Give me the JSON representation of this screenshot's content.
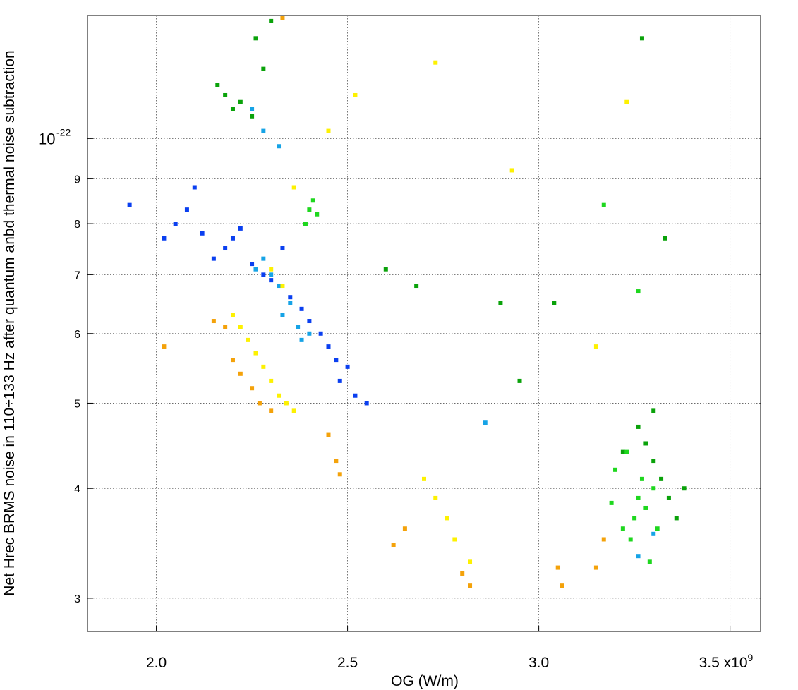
{
  "chart_data": {
    "type": "scatter",
    "title": "",
    "xlabel": "OG (W/m)",
    "ylabel": "Net Hrec BRMS noise in 110÷133 Hz after quantum anbd thermal noise subtraction",
    "x_scale": "linear",
    "y_scale": "log",
    "xlim": [
      1820000000.0,
      3580000000.0
    ],
    "ylim": [
      2.75e-23,
      1.38e-22
    ],
    "grid": true,
    "grid_style": "dotted",
    "legend": "none",
    "x_ticks": [
      {
        "value": 2000000000.0,
        "label": "2.0"
      },
      {
        "value": 2500000000.0,
        "label": "2.5"
      },
      {
        "value": 3000000000.0,
        "label": "3.0"
      },
      {
        "value": 3500000000.0,
        "label": "3.5 x10",
        "exponent": "9"
      }
    ],
    "y_ticks": [
      {
        "value": 3e-23,
        "label": "3"
      },
      {
        "value": 4e-23,
        "label": "4"
      },
      {
        "value": 5e-23,
        "label": "5"
      },
      {
        "value": 6e-23,
        "label": "6"
      },
      {
        "value": 7e-23,
        "label": "7"
      },
      {
        "value": 8e-23,
        "label": "8"
      },
      {
        "value": 9e-23,
        "label": "9"
      },
      {
        "value": 1e-22,
        "label": "10",
        "exponent": "-22"
      }
    ],
    "series": [
      {
        "color": "#0a3ff0",
        "points": [
          [
            2200000000.0,
            7.7e-23
          ],
          [
            2180000000.0,
            7.5e-23
          ],
          [
            2220000000.0,
            7.9e-23
          ],
          [
            2150000000.0,
            7.3e-23
          ],
          [
            2250000000.0,
            7.2e-23
          ],
          [
            2280000000.0,
            7e-23
          ],
          [
            2120000000.0,
            7.8e-23
          ],
          [
            2300000000.0,
            6.9e-23
          ],
          [
            2350000000.0,
            6.6e-23
          ],
          [
            2400000000.0,
            6.2e-23
          ],
          [
            2430000000.0,
            6e-23
          ],
          [
            2450000000.0,
            5.8e-23
          ],
          [
            2470000000.0,
            5.6e-23
          ],
          [
            2500000000.0,
            5.5e-23
          ],
          [
            2480000000.0,
            5.3e-23
          ],
          [
            2520000000.0,
            5.1e-23
          ],
          [
            2050000000.0,
            8e-23
          ],
          [
            2020000000.0,
            7.7e-23
          ],
          [
            2080000000.0,
            8.3e-23
          ],
          [
            1930000000.0,
            8.4e-23
          ],
          [
            2100000000.0,
            8.8e-23
          ],
          [
            2550000000.0,
            5e-23
          ],
          [
            2330000000.0,
            7.5e-23
          ],
          [
            2380000000.0,
            6.4e-23
          ]
        ]
      },
      {
        "color": "#16a3e6",
        "points": [
          [
            2280000000.0,
            7.3e-23
          ],
          [
            2300000000.0,
            7e-23
          ],
          [
            2320000000.0,
            6.8e-23
          ],
          [
            2350000000.0,
            6.5e-23
          ],
          [
            2330000000.0,
            6.3e-23
          ],
          [
            2260000000.0,
            7.1e-23
          ],
          [
            2370000000.0,
            6.1e-23
          ],
          [
            2380000000.0,
            5.9e-23
          ],
          [
            2400000000.0,
            6e-23
          ],
          [
            2250000000.0,
            1.08e-22
          ],
          [
            2280000000.0,
            1.02e-22
          ],
          [
            2320000000.0,
            9.8e-23
          ],
          [
            2860000000.0,
            4.75e-23
          ],
          [
            3260000000.0,
            3.35e-23
          ],
          [
            3300000000.0,
            3.55e-23
          ]
        ]
      },
      {
        "color": "#fdf101",
        "points": [
          [
            2280000000.0,
            5.5e-23
          ],
          [
            2300000000.0,
            5.3e-23
          ],
          [
            2260000000.0,
            5.7e-23
          ],
          [
            2320000000.0,
            5.1e-23
          ],
          [
            2240000000.0,
            5.9e-23
          ],
          [
            2220000000.0,
            6.1e-23
          ],
          [
            2340000000.0,
            5e-23
          ],
          [
            2200000000.0,
            6.3e-23
          ],
          [
            2360000000.0,
            4.9e-23
          ],
          [
            2330000000.0,
            6.8e-23
          ],
          [
            2300000000.0,
            7.1e-23
          ],
          [
            2700000000.0,
            4.1e-23
          ],
          [
            2730000000.0,
            3.9e-23
          ],
          [
            2760000000.0,
            3.7e-23
          ],
          [
            2780000000.0,
            3.5e-23
          ],
          [
            2820000000.0,
            3.3e-23
          ],
          [
            2360000000.0,
            8.8e-23
          ],
          [
            2450000000.0,
            1.02e-22
          ],
          [
            2520000000.0,
            1.12e-22
          ],
          [
            2730000000.0,
            1.22e-22
          ],
          [
            2930000000.0,
            9.2e-23
          ],
          [
            3230000000.0,
            1.1e-22
          ],
          [
            3150000000.0,
            5.8e-23
          ]
        ]
      },
      {
        "color": "#f4a20a",
        "points": [
          [
            2200000000.0,
            5.6e-23
          ],
          [
            2220000000.0,
            5.4e-23
          ],
          [
            2250000000.0,
            5.2e-23
          ],
          [
            2270000000.0,
            5e-23
          ],
          [
            2300000000.0,
            4.9e-23
          ],
          [
            2180000000.0,
            6.1e-23
          ],
          [
            2150000000.0,
            6.2e-23
          ],
          [
            2450000000.0,
            4.6e-23
          ],
          [
            2470000000.0,
            4.3e-23
          ],
          [
            2480000000.0,
            4.15e-23
          ],
          [
            2620000000.0,
            3.45e-23
          ],
          [
            2650000000.0,
            3.6e-23
          ],
          [
            2800000000.0,
            3.2e-23
          ],
          [
            2820000000.0,
            3.1e-23
          ],
          [
            3050000000.0,
            3.25e-23
          ],
          [
            3060000000.0,
            3.1e-23
          ],
          [
            3150000000.0,
            3.25e-23
          ],
          [
            3170000000.0,
            3.5e-23
          ],
          [
            2020000000.0,
            5.8e-23
          ],
          [
            2330000000.0,
            1.37e-22
          ]
        ]
      },
      {
        "color": "#0aa20a",
        "points": [
          [
            2200000000.0,
            1.08e-22
          ],
          [
            2180000000.0,
            1.12e-22
          ],
          [
            2220000000.0,
            1.1e-22
          ],
          [
            2250000000.0,
            1.06e-22
          ],
          [
            2160000000.0,
            1.15e-22
          ],
          [
            2280000000.0,
            1.2e-22
          ],
          [
            2300000000.0,
            1.36e-22
          ],
          [
            2260000000.0,
            1.3e-22
          ],
          [
            3300000000.0,
            4.3e-23
          ],
          [
            3320000000.0,
            4.1e-23
          ],
          [
            3280000000.0,
            4.5e-23
          ],
          [
            3340000000.0,
            3.9e-23
          ],
          [
            3260000000.0,
            4.7e-23
          ],
          [
            3360000000.0,
            3.7e-23
          ],
          [
            3300000000.0,
            4.9e-23
          ],
          [
            3220000000.0,
            4.4e-23
          ],
          [
            3380000000.0,
            4e-23
          ],
          [
            2600000000.0,
            7.1e-23
          ],
          [
            2680000000.0,
            6.8e-23
          ],
          [
            2900000000.0,
            6.5e-23
          ],
          [
            3040000000.0,
            6.5e-23
          ],
          [
            2950000000.0,
            5.3e-23
          ],
          [
            3270000000.0,
            1.3e-22
          ],
          [
            3330000000.0,
            7.7e-23
          ]
        ]
      },
      {
        "color": "#1ed71e",
        "points": [
          [
            3260000000.0,
            3.9e-23
          ],
          [
            3250000000.0,
            3.7e-23
          ],
          [
            3270000000.0,
            4.1e-23
          ],
          [
            3240000000.0,
            3.5e-23
          ],
          [
            3280000000.0,
            3.8e-23
          ],
          [
            3220000000.0,
            3.6e-23
          ],
          [
            3300000000.0,
            4e-23
          ],
          [
            3200000000.0,
            4.2e-23
          ],
          [
            3290000000.0,
            3.3e-23
          ],
          [
            3230000000.0,
            4.4e-23
          ],
          [
            3310000000.0,
            3.6e-23
          ],
          [
            3190000000.0,
            3.85e-23
          ],
          [
            2400000000.0,
            8.3e-23
          ],
          [
            2390000000.0,
            8e-23
          ],
          [
            2410000000.0,
            8.5e-23
          ],
          [
            2420000000.0,
            8.2e-23
          ],
          [
            3170000000.0,
            8.4e-23
          ],
          [
            3260000000.0,
            6.7e-23
          ]
        ]
      }
    ]
  }
}
